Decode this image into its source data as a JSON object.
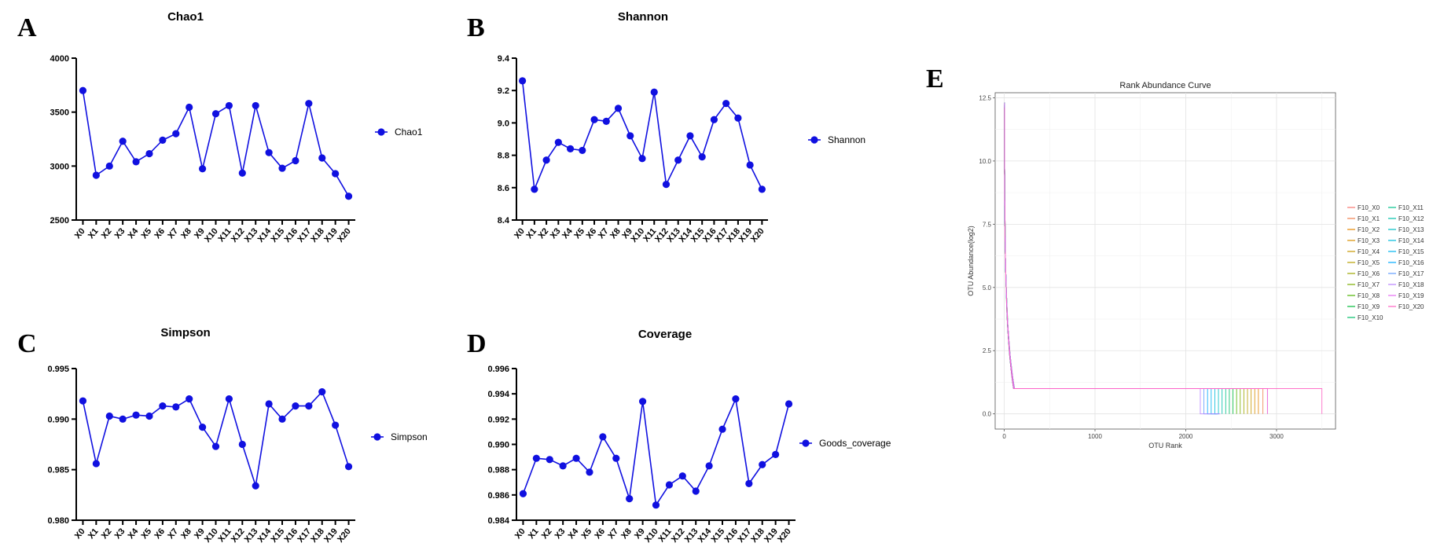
{
  "panels": [
    {
      "letter": "A",
      "chart_index": 0
    },
    {
      "letter": "B",
      "chart_index": 1
    },
    {
      "letter": "C",
      "chart_index": 2
    },
    {
      "letter": "D",
      "chart_index": 3
    },
    {
      "letter": "E",
      "chart_index": 4
    }
  ],
  "chart_data": [
    {
      "type": "line",
      "title": "Chao1",
      "categories": [
        "X0",
        "X1",
        "X2",
        "X3",
        "X4",
        "X5",
        "X6",
        "X7",
        "X8",
        "X9",
        "X10",
        "X11",
        "X12",
        "X13",
        "X14",
        "X15",
        "X16",
        "X17",
        "X18",
        "X19",
        "X20"
      ],
      "series": [
        {
          "name": "Chao1",
          "values": [
            3700,
            2915,
            3000,
            3230,
            3040,
            3115,
            3240,
            3300,
            3545,
            2975,
            3485,
            3560,
            2935,
            3560,
            3125,
            2980,
            3050,
            3580,
            3075,
            2930,
            2720
          ]
        }
      ],
      "yticks": [
        "2500",
        "3000",
        "3500",
        "4000"
      ],
      "ylim": [
        2500,
        4000
      ],
      "color": "#1010e0",
      "legend": "right"
    },
    {
      "type": "line",
      "title": "Shannon",
      "categories": [
        "X0",
        "X1",
        "X2",
        "X3",
        "X4",
        "X5",
        "X6",
        "X7",
        "X8",
        "X9",
        "X10",
        "X11",
        "X12",
        "X13",
        "X14",
        "X15",
        "X16",
        "X17",
        "X18",
        "X19",
        "X20"
      ],
      "series": [
        {
          "name": "Shannon",
          "values": [
            9.26,
            8.59,
            8.77,
            8.88,
            8.84,
            8.83,
            9.02,
            9.01,
            9.09,
            8.92,
            8.78,
            9.19,
            8.62,
            8.77,
            8.92,
            8.79,
            9.02,
            9.12,
            9.03,
            8.74,
            8.59
          ]
        }
      ],
      "yticks": [
        "8.4",
        "8.6",
        "8.8",
        "9.0",
        "9.2",
        "9.4"
      ],
      "ylim": [
        8.4,
        9.4
      ],
      "color": "#1010e0",
      "legend": "right"
    },
    {
      "type": "line",
      "title": "Simpson",
      "categories": [
        "X0",
        "X1",
        "X2",
        "X3",
        "X4",
        "X5",
        "X6",
        "X7",
        "X8",
        "X9",
        "X10",
        "X11",
        "X12",
        "X13",
        "X14",
        "X15",
        "X16",
        "X17",
        "X18",
        "X19",
        "X20"
      ],
      "series": [
        {
          "name": "Simpson",
          "values": [
            0.9918,
            0.9856,
            0.9903,
            0.99,
            0.9904,
            0.9903,
            0.9913,
            0.9912,
            0.992,
            0.9892,
            0.9873,
            0.992,
            0.9875,
            0.9834,
            0.9915,
            0.99,
            0.9913,
            0.9913,
            0.9927,
            0.9894,
            0.9853
          ]
        }
      ],
      "yticks": [
        "0.980",
        "0.985",
        "0.990",
        "0.995"
      ],
      "ylim": [
        0.98,
        0.995
      ],
      "color": "#1010e0",
      "legend": "right"
    },
    {
      "type": "line",
      "title": "Coverage",
      "categories": [
        "X0",
        "X1",
        "X2",
        "X3",
        "X4",
        "X5",
        "X6",
        "X7",
        "X8",
        "X9",
        "X10",
        "X11",
        "X12",
        "X13",
        "X14",
        "X15",
        "X16",
        "X17",
        "X18",
        "X19",
        "X20"
      ],
      "series": [
        {
          "name": "Goods_coverage",
          "values": [
            0.9861,
            0.9889,
            0.9888,
            0.9883,
            0.9889,
            0.9878,
            0.9906,
            0.9889,
            0.9857,
            0.9934,
            0.9852,
            0.9868,
            0.9875,
            0.9863,
            0.9883,
            0.9912,
            0.9936,
            0.9869,
            0.9884,
            0.9892,
            0.9932
          ]
        }
      ],
      "yticks": [
        "0.984",
        "0.986",
        "0.988",
        "0.990",
        "0.992",
        "0.994",
        "0.996"
      ],
      "ylim": [
        0.984,
        0.996
      ],
      "color": "#1010e0",
      "legend": "right"
    },
    {
      "type": "line",
      "title": "Rank Abundance Curve",
      "xlabel": "OTU Rank",
      "ylabel": "OTU Abundance(log2)",
      "xticks": [
        "0",
        "1000",
        "2000",
        "3000"
      ],
      "yticks": [
        "0.0",
        "2.5",
        "5.0",
        "7.5",
        "10.0",
        "12.5"
      ],
      "xlim": [
        -100,
        3650
      ],
      "ylim": [
        -0.6,
        12.7
      ],
      "grid": true,
      "legend": "right",
      "series": [
        {
          "name": "F10_X0",
          "color": "#F8766D",
          "max_rank": 2900
        },
        {
          "name": "F10_X1",
          "color": "#F07F4E",
          "max_rank": 2850
        },
        {
          "name": "F10_X2",
          "color": "#E58700",
          "max_rank": 2800
        },
        {
          "name": "F10_X3",
          "color": "#D89000",
          "max_rank": 2760
        },
        {
          "name": "F10_X4",
          "color": "#C99800",
          "max_rank": 2720
        },
        {
          "name": "F10_X5",
          "color": "#B79F00",
          "max_rank": 2680
        },
        {
          "name": "F10_X6",
          "color": "#9DA700",
          "max_rank": 2640
        },
        {
          "name": "F10_X7",
          "color": "#7CAE00",
          "max_rank": 2600
        },
        {
          "name": "F10_X8",
          "color": "#4EB400",
          "max_rank": 2560
        },
        {
          "name": "F10_X9",
          "color": "#00BA38",
          "max_rank": 2520
        },
        {
          "name": "F10_X10",
          "color": "#00BE67",
          "max_rank": 2480
        },
        {
          "name": "F10_X11",
          "color": "#00C08B",
          "max_rank": 2440
        },
        {
          "name": "F10_X12",
          "color": "#00C1AA",
          "max_rank": 2400
        },
        {
          "name": "F10_X13",
          "color": "#00BFC4",
          "max_rank": 2360
        },
        {
          "name": "F10_X14",
          "color": "#00BBDC",
          "max_rank": 2320
        },
        {
          "name": "F10_X15",
          "color": "#00B4F0",
          "max_rank": 2280
        },
        {
          "name": "F10_X16",
          "color": "#00A9FF",
          "max_rank": 2240
        },
        {
          "name": "F10_X17",
          "color": "#619CFF",
          "max_rank": 2200
        },
        {
          "name": "F10_X18",
          "color": "#B983FF",
          "max_rank": 2160
        },
        {
          "name": "F10_X19",
          "color": "#E76BF3",
          "max_rank": 2900
        },
        {
          "name": "F10_X20",
          "color": "#FF61C3",
          "max_rank": 3500
        }
      ]
    }
  ]
}
